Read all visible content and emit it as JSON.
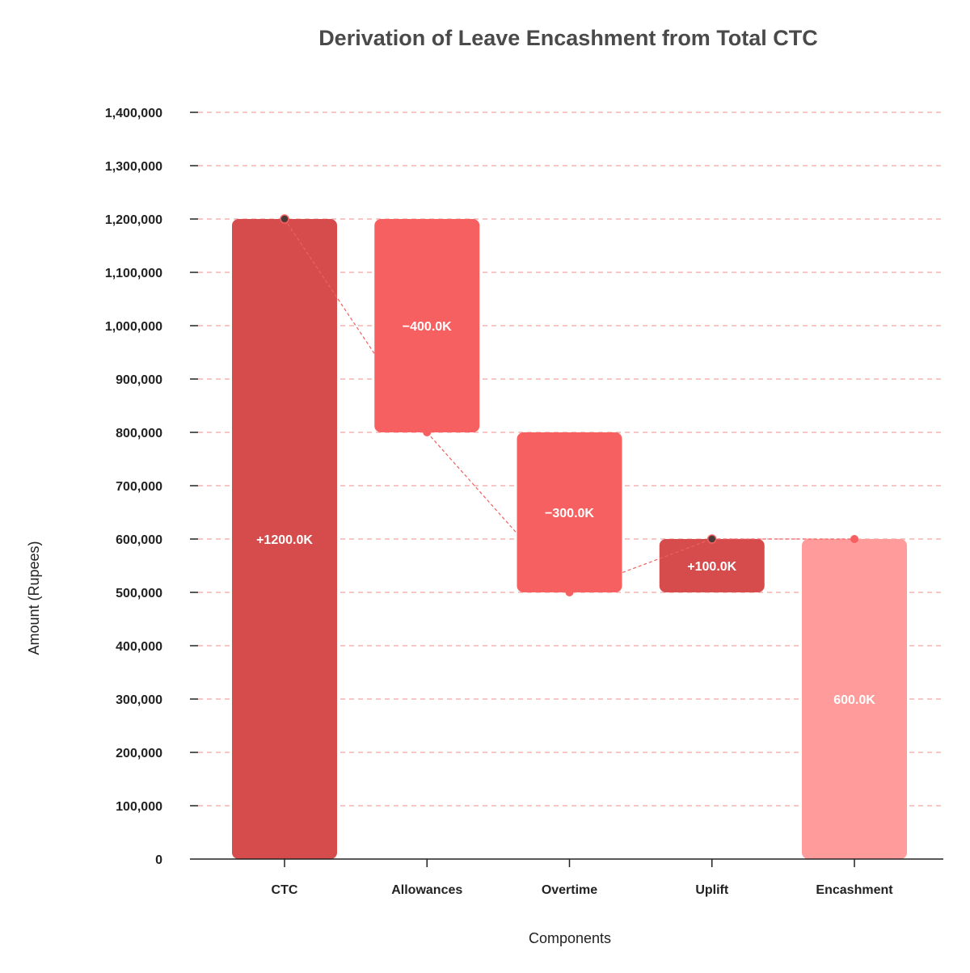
{
  "chart_data": {
    "type": "waterfall",
    "title": "Derivation of Leave Encashment from Total CTC",
    "xlabel": "Components",
    "ylabel": "Amount (Rupees)",
    "ylim": [
      0,
      1400000
    ],
    "yticks": [
      0,
      100000,
      200000,
      300000,
      400000,
      500000,
      600000,
      700000,
      800000,
      900000,
      1000000,
      1100000,
      1200000,
      1300000,
      1400000
    ],
    "ytick_labels": [
      "0",
      "100,000",
      "200,000",
      "300,000",
      "400,000",
      "500,000",
      "600,000",
      "700,000",
      "800,000",
      "900,000",
      "1,000,000",
      "1,100,000",
      "1,200,000",
      "1,300,000",
      "1,400,000"
    ],
    "grid": "horizontal dashed",
    "categories": [
      "CTC",
      "Allowances",
      "Overtime",
      "Uplift",
      "Encashment"
    ],
    "steps": [
      {
        "category": "CTC",
        "kind": "increase",
        "start": 0,
        "end": 1200000,
        "label": "+1200.0K"
      },
      {
        "category": "Allowances",
        "kind": "decrease",
        "start": 1200000,
        "end": 800000,
        "label": "−400.0K"
      },
      {
        "category": "Overtime",
        "kind": "decrease",
        "start": 800000,
        "end": 500000,
        "label": "−300.0K"
      },
      {
        "category": "Uplift",
        "kind": "increase",
        "start": 500000,
        "end": 600000,
        "label": "+100.0K"
      },
      {
        "category": "Encashment",
        "kind": "total",
        "start": 0,
        "end": 600000,
        "label": "600.0K"
      }
    ],
    "colors": {
      "increase": "#d64c4c",
      "decrease": "#f76060",
      "total": "#ff9b9b",
      "grid": "#f5a3a3",
      "connector": "#f06060",
      "marker_increase": "#4a3a3a",
      "marker_other": "#f76060",
      "axis": "#222222"
    }
  }
}
